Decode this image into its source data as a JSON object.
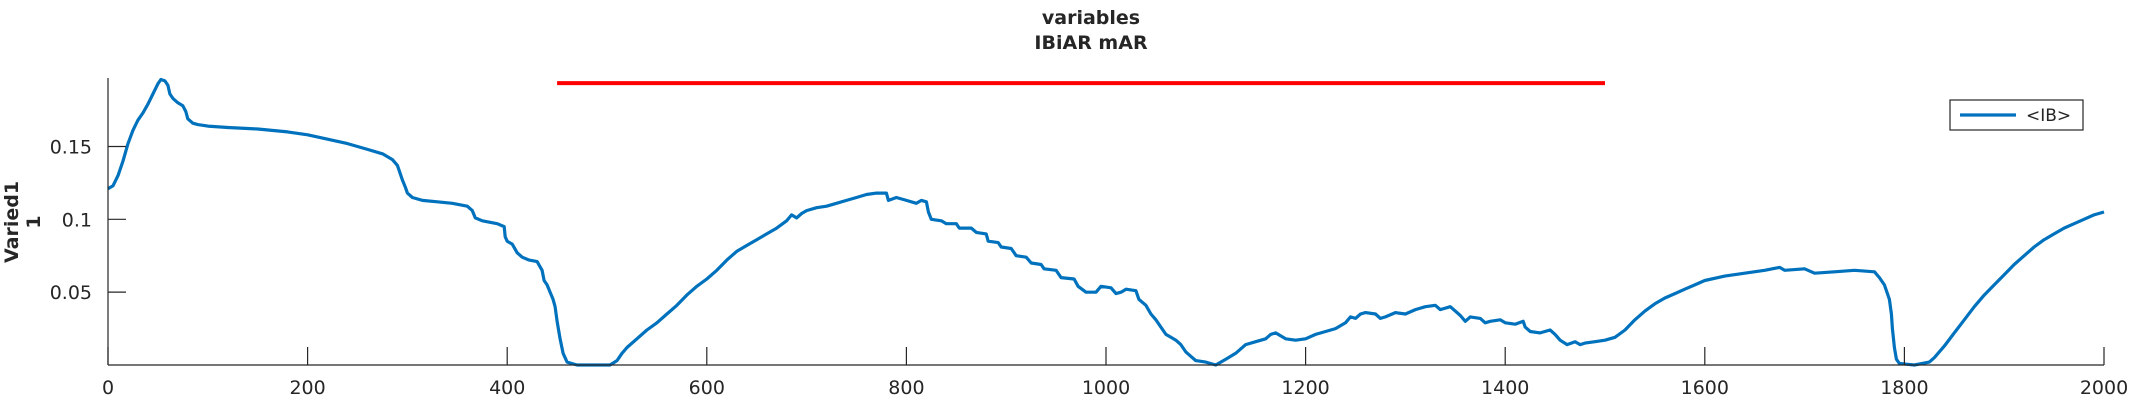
{
  "chart_data": {
    "type": "line",
    "title": [
      "variables",
      "IBiAR mAR"
    ],
    "ylabel": [
      "Varied1",
      "1"
    ],
    "xlabel": "",
    "xlim": [
      0,
      2000
    ],
    "ylim": [
      0,
      0.197
    ],
    "xticks": [
      0,
      200,
      400,
      600,
      800,
      1000,
      1200,
      1400,
      1600,
      1800,
      2000
    ],
    "xtick_labels": [
      "0",
      "200",
      "400",
      "600",
      "800",
      "1000",
      "1200",
      "1400",
      "1600",
      "1800",
      "2000"
    ],
    "yticks": [
      0.05,
      0.1,
      0.15
    ],
    "ytick_labels": [
      "0.05",
      "0.1",
      "0.15"
    ],
    "grid": false,
    "legend_position": "top-right",
    "series": [
      {
        "name": "<IB>",
        "color": "#0072BD",
        "points": [
          [
            0,
            0.121
          ],
          [
            5,
            0.123
          ],
          [
            10,
            0.13
          ],
          [
            15,
            0.14
          ],
          [
            20,
            0.152
          ],
          [
            25,
            0.161
          ],
          [
            30,
            0.168
          ],
          [
            35,
            0.173
          ],
          [
            40,
            0.179
          ],
          [
            45,
            0.186
          ],
          [
            50,
            0.193
          ],
          [
            53,
            0.196
          ],
          [
            57,
            0.195
          ],
          [
            60,
            0.192
          ],
          [
            62,
            0.186
          ],
          [
            65,
            0.183
          ],
          [
            70,
            0.18
          ],
          [
            75,
            0.178
          ],
          [
            78,
            0.174
          ],
          [
            80,
            0.169
          ],
          [
            85,
            0.166
          ],
          [
            90,
            0.165
          ],
          [
            100,
            0.164
          ],
          [
            120,
            0.163
          ],
          [
            150,
            0.162
          ],
          [
            180,
            0.16
          ],
          [
            200,
            0.158
          ],
          [
            220,
            0.155
          ],
          [
            240,
            0.152
          ],
          [
            260,
            0.148
          ],
          [
            275,
            0.145
          ],
          [
            285,
            0.141
          ],
          [
            290,
            0.137
          ],
          [
            292,
            0.133
          ],
          [
            295,
            0.127
          ],
          [
            298,
            0.122
          ],
          [
            300,
            0.118
          ],
          [
            305,
            0.115
          ],
          [
            315,
            0.113
          ],
          [
            330,
            0.112
          ],
          [
            345,
            0.111
          ],
          [
            360,
            0.109
          ],
          [
            365,
            0.106
          ],
          [
            368,
            0.101
          ],
          [
            375,
            0.099
          ],
          [
            390,
            0.097
          ],
          [
            397,
            0.095
          ],
          [
            398,
            0.088
          ],
          [
            400,
            0.085
          ],
          [
            405,
            0.083
          ],
          [
            410,
            0.077
          ],
          [
            415,
            0.074
          ],
          [
            422,
            0.072
          ],
          [
            430,
            0.071
          ],
          [
            435,
            0.065
          ],
          [
            437,
            0.058
          ],
          [
            440,
            0.055
          ],
          [
            443,
            0.05
          ],
          [
            446,
            0.045
          ],
          [
            448,
            0.04
          ],
          [
            450,
            0.03
          ],
          [
            453,
            0.018
          ],
          [
            456,
            0.008
          ],
          [
            460,
            0.002
          ],
          [
            470,
            0.0
          ],
          [
            490,
            0.0
          ],
          [
            503,
            0.0
          ],
          [
            510,
            0.003
          ],
          [
            515,
            0.008
          ],
          [
            520,
            0.012
          ],
          [
            530,
            0.018
          ],
          [
            540,
            0.024
          ],
          [
            550,
            0.029
          ],
          [
            560,
            0.035
          ],
          [
            570,
            0.041
          ],
          [
            580,
            0.048
          ],
          [
            590,
            0.054
          ],
          [
            600,
            0.059
          ],
          [
            610,
            0.065
          ],
          [
            620,
            0.072
          ],
          [
            630,
            0.078
          ],
          [
            640,
            0.082
          ],
          [
            650,
            0.086
          ],
          [
            660,
            0.09
          ],
          [
            670,
            0.094
          ],
          [
            680,
            0.099
          ],
          [
            685,
            0.103
          ],
          [
            690,
            0.101
          ],
          [
            695,
            0.104
          ],
          [
            700,
            0.106
          ],
          [
            710,
            0.108
          ],
          [
            720,
            0.109
          ],
          [
            730,
            0.111
          ],
          [
            740,
            0.113
          ],
          [
            750,
            0.115
          ],
          [
            760,
            0.117
          ],
          [
            770,
            0.118
          ],
          [
            780,
            0.118
          ],
          [
            782,
            0.113
          ],
          [
            790,
            0.115
          ],
          [
            800,
            0.113
          ],
          [
            810,
            0.111
          ],
          [
            815,
            0.113
          ],
          [
            820,
            0.112
          ],
          [
            822,
            0.105
          ],
          [
            825,
            0.1
          ],
          [
            835,
            0.099
          ],
          [
            840,
            0.097
          ],
          [
            850,
            0.097
          ],
          [
            853,
            0.094
          ],
          [
            865,
            0.094
          ],
          [
            870,
            0.091
          ],
          [
            880,
            0.09
          ],
          [
            882,
            0.085
          ],
          [
            892,
            0.084
          ],
          [
            895,
            0.081
          ],
          [
            905,
            0.08
          ],
          [
            910,
            0.075
          ],
          [
            920,
            0.074
          ],
          [
            925,
            0.07
          ],
          [
            935,
            0.069
          ],
          [
            938,
            0.066
          ],
          [
            950,
            0.065
          ],
          [
            955,
            0.06
          ],
          [
            968,
            0.059
          ],
          [
            972,
            0.054
          ],
          [
            980,
            0.05
          ],
          [
            990,
            0.05
          ],
          [
            995,
            0.054
          ],
          [
            1005,
            0.053
          ],
          [
            1010,
            0.049
          ],
          [
            1015,
            0.05
          ],
          [
            1020,
            0.052
          ],
          [
            1030,
            0.051
          ],
          [
            1033,
            0.045
          ],
          [
            1040,
            0.041
          ],
          [
            1045,
            0.035
          ],
          [
            1050,
            0.031
          ],
          [
            1055,
            0.026
          ],
          [
            1060,
            0.021
          ],
          [
            1065,
            0.019
          ],
          [
            1070,
            0.017
          ],
          [
            1075,
            0.014
          ],
          [
            1080,
            0.009
          ],
          [
            1085,
            0.006
          ],
          [
            1090,
            0.003
          ],
          [
            1100,
            0.002
          ],
          [
            1110,
            0.0
          ],
          [
            1120,
            0.004
          ],
          [
            1130,
            0.008
          ],
          [
            1140,
            0.014
          ],
          [
            1150,
            0.016
          ],
          [
            1160,
            0.018
          ],
          [
            1165,
            0.021
          ],
          [
            1170,
            0.022
          ],
          [
            1180,
            0.018
          ],
          [
            1190,
            0.017
          ],
          [
            1200,
            0.018
          ],
          [
            1210,
            0.021
          ],
          [
            1220,
            0.023
          ],
          [
            1230,
            0.025
          ],
          [
            1240,
            0.029
          ],
          [
            1245,
            0.033
          ],
          [
            1250,
            0.032
          ],
          [
            1255,
            0.035
          ],
          [
            1260,
            0.036
          ],
          [
            1270,
            0.035
          ],
          [
            1275,
            0.032
          ],
          [
            1280,
            0.033
          ],
          [
            1290,
            0.036
          ],
          [
            1300,
            0.035
          ],
          [
            1310,
            0.038
          ],
          [
            1320,
            0.04
          ],
          [
            1330,
            0.041
          ],
          [
            1335,
            0.038
          ],
          [
            1345,
            0.04
          ],
          [
            1350,
            0.037
          ],
          [
            1355,
            0.034
          ],
          [
            1360,
            0.03
          ],
          [
            1365,
            0.033
          ],
          [
            1375,
            0.032
          ],
          [
            1380,
            0.029
          ],
          [
            1385,
            0.03
          ],
          [
            1395,
            0.031
          ],
          [
            1400,
            0.029
          ],
          [
            1410,
            0.028
          ],
          [
            1418,
            0.03
          ],
          [
            1420,
            0.026
          ],
          [
            1425,
            0.023
          ],
          [
            1435,
            0.022
          ],
          [
            1445,
            0.024
          ],
          [
            1450,
            0.021
          ],
          [
            1455,
            0.017
          ],
          [
            1462,
            0.014
          ],
          [
            1470,
            0.016
          ],
          [
            1475,
            0.014
          ],
          [
            1480,
            0.015
          ],
          [
            1490,
            0.016
          ],
          [
            1500,
            0.017
          ],
          [
            1510,
            0.019
          ],
          [
            1520,
            0.024
          ],
          [
            1530,
            0.031
          ],
          [
            1540,
            0.037
          ],
          [
            1550,
            0.042
          ],
          [
            1560,
            0.046
          ],
          [
            1570,
            0.049
          ],
          [
            1580,
            0.052
          ],
          [
            1590,
            0.055
          ],
          [
            1600,
            0.058
          ],
          [
            1620,
            0.061
          ],
          [
            1640,
            0.063
          ],
          [
            1660,
            0.065
          ],
          [
            1675,
            0.067
          ],
          [
            1680,
            0.065
          ],
          [
            1700,
            0.066
          ],
          [
            1710,
            0.063
          ],
          [
            1730,
            0.064
          ],
          [
            1750,
            0.065
          ],
          [
            1770,
            0.064
          ],
          [
            1775,
            0.06
          ],
          [
            1780,
            0.055
          ],
          [
            1785,
            0.045
          ],
          [
            1787,
            0.035
          ],
          [
            1788,
            0.025
          ],
          [
            1790,
            0.012
          ],
          [
            1792,
            0.004
          ],
          [
            1795,
            0.001
          ],
          [
            1810,
            0.0
          ],
          [
            1825,
            0.002
          ],
          [
            1830,
            0.005
          ],
          [
            1840,
            0.013
          ],
          [
            1850,
            0.022
          ],
          [
            1860,
            0.031
          ],
          [
            1870,
            0.04
          ],
          [
            1880,
            0.048
          ],
          [
            1890,
            0.055
          ],
          [
            1900,
            0.062
          ],
          [
            1910,
            0.069
          ],
          [
            1920,
            0.075
          ],
          [
            1930,
            0.081
          ],
          [
            1940,
            0.086
          ],
          [
            1950,
            0.09
          ],
          [
            1960,
            0.094
          ],
          [
            1970,
            0.097
          ],
          [
            1980,
            0.1
          ],
          [
            1990,
            0.103
          ],
          [
            2000,
            0.105
          ]
        ]
      },
      {
        "name": "",
        "color": "#FF0000",
        "points": [
          [
            450,
            0.1935
          ],
          [
            1500,
            0.1935
          ]
        ]
      }
    ]
  }
}
